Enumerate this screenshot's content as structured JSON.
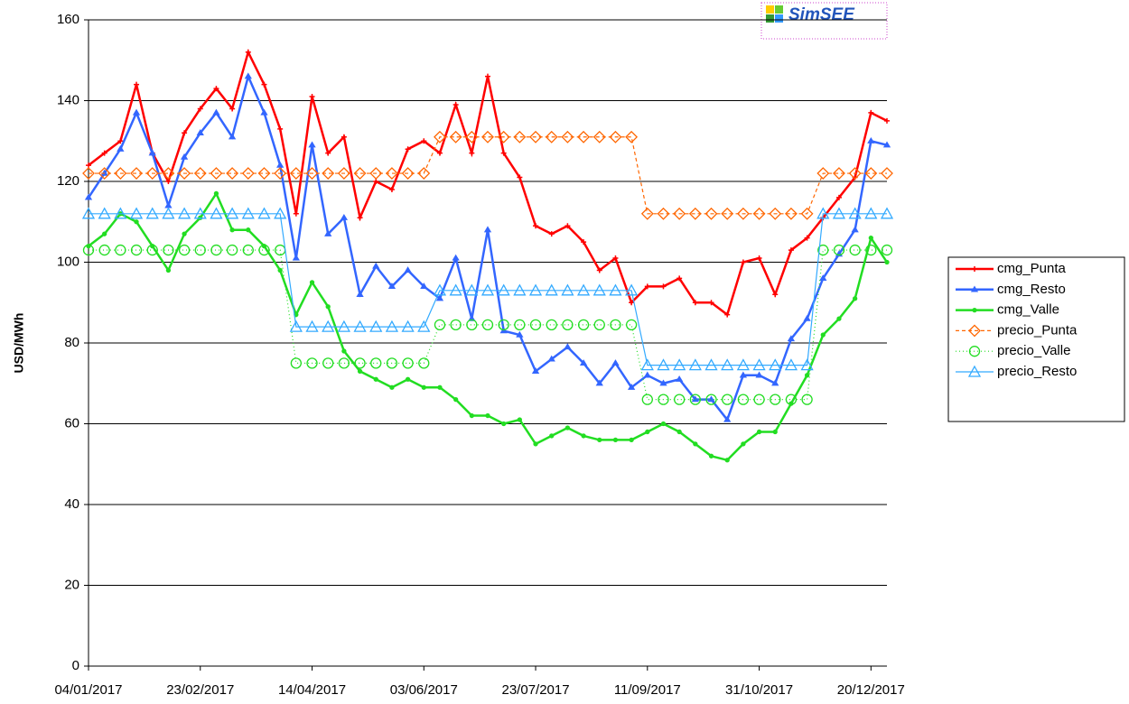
{
  "logo": "SimSEE",
  "chart_data": {
    "type": "line",
    "ylabel": "USD/MWh",
    "categories": [
      "04/01/2017",
      null,
      null,
      null,
      null,
      null,
      null,
      "23/02/2017",
      null,
      null,
      null,
      null,
      null,
      null,
      "14/04/2017",
      null,
      null,
      null,
      null,
      null,
      null,
      "03/06/2017",
      null,
      null,
      null,
      null,
      null,
      null,
      "23/07/2017",
      null,
      null,
      null,
      null,
      null,
      null,
      "11/09/2017",
      null,
      null,
      null,
      null,
      null,
      null,
      "31/10/2017",
      null,
      null,
      null,
      null,
      null,
      null,
      "20/12/2017",
      null
    ],
    "ylim": [
      0,
      160
    ],
    "yticks": [
      0,
      20,
      40,
      60,
      80,
      100,
      120,
      140,
      160
    ],
    "grid": true,
    "legend": "right",
    "series": [
      {
        "name": "cmg_Punta",
        "color": "#ff0000",
        "marker": "plus",
        "dash": "solid",
        "values": [
          124,
          127,
          130,
          144,
          127,
          120,
          132,
          138,
          143,
          138,
          152,
          144,
          133,
          112,
          141,
          127,
          131,
          111,
          120,
          118,
          128,
          130,
          127,
          139,
          127,
          146,
          127,
          121,
          109,
          107,
          109,
          105,
          98,
          101,
          90,
          94,
          94,
          96,
          90,
          90,
          87,
          100,
          101,
          92,
          103,
          106,
          111,
          116,
          121,
          137,
          135
        ]
      },
      {
        "name": "cmg_Resto",
        "color": "#3366ff",
        "marker": "smalltriangle",
        "dash": "solid",
        "values": [
          116,
          122,
          128,
          137,
          127,
          114,
          126,
          132,
          137,
          131,
          146,
          137,
          124,
          101,
          129,
          107,
          111,
          92,
          99,
          94,
          98,
          94,
          91,
          101,
          86,
          108,
          83,
          82,
          73,
          76,
          79,
          75,
          70,
          75,
          69,
          72,
          70,
          71,
          66,
          66,
          61,
          72,
          72,
          70,
          81,
          86,
          96,
          102,
          108,
          130,
          129
        ]
      },
      {
        "name": "cmg_Valle",
        "color": "#22dd22",
        "marker": "dot",
        "dash": "solid",
        "values": [
          104,
          107,
          112,
          110,
          104,
          98,
          107,
          111,
          117,
          108,
          108,
          104,
          98,
          87,
          95,
          89,
          78,
          73,
          71,
          69,
          71,
          69,
          69,
          66,
          62,
          62,
          60,
          61,
          55,
          57,
          59,
          57,
          56,
          56,
          56,
          58,
          60,
          58,
          55,
          52,
          51,
          55,
          58,
          58,
          65,
          72,
          82,
          86,
          91,
          106,
          100
        ]
      },
      {
        "name": "precio_Punta",
        "color": "#ff6600",
        "marker": "diamond",
        "dash": "dashed",
        "values": [
          122,
          122,
          122,
          122,
          122,
          122,
          122,
          122,
          122,
          122,
          122,
          122,
          122,
          122,
          122,
          122,
          122,
          122,
          122,
          122,
          122,
          122,
          131,
          131,
          131,
          131,
          131,
          131,
          131,
          131,
          131,
          131,
          131,
          131,
          131,
          112,
          112,
          112,
          112,
          112,
          112,
          112,
          112,
          112,
          112,
          112,
          122,
          122,
          122,
          122,
          122
        ]
      },
      {
        "name": "precio_Valle",
        "color": "#22dd22",
        "marker": "circle",
        "dash": "dotted",
        "values": [
          103,
          103,
          103,
          103,
          103,
          103,
          103,
          103,
          103,
          103,
          103,
          103,
          103,
          75,
          75,
          75,
          75,
          75,
          75,
          75,
          75,
          75,
          84.5,
          84.5,
          84.5,
          84.5,
          84.5,
          84.5,
          84.5,
          84.5,
          84.5,
          84.5,
          84.5,
          84.5,
          84.5,
          66,
          66,
          66,
          66,
          66,
          66,
          66,
          66,
          66,
          66,
          66,
          103,
          103,
          103,
          103,
          103
        ]
      },
      {
        "name": "precio_Resto",
        "color": "#33aaff",
        "marker": "triangle",
        "dash": "thin",
        "values": [
          112,
          112,
          112,
          112,
          112,
          112,
          112,
          112,
          112,
          112,
          112,
          112,
          112,
          84,
          84,
          84,
          84,
          84,
          84,
          84,
          84,
          84,
          93,
          93,
          93,
          93,
          93,
          93,
          93,
          93,
          93,
          93,
          93,
          93,
          93,
          74.5,
          74.5,
          74.5,
          74.5,
          74.5,
          74.5,
          74.5,
          74.5,
          74.5,
          74.5,
          74.5,
          112,
          112,
          112,
          112,
          112
        ]
      }
    ]
  }
}
